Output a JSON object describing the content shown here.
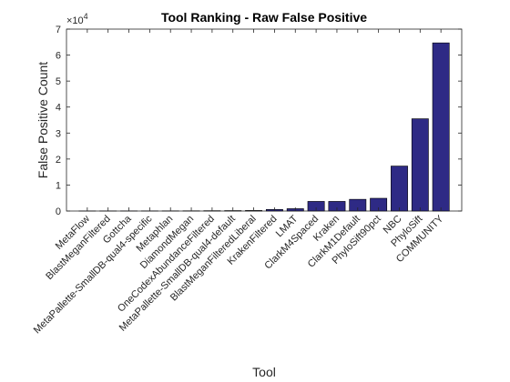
{
  "chart_data": {
    "type": "bar",
    "title": "Tool Ranking - Raw False Positive",
    "xlabel": "Tool",
    "ylabel": "False Positive Count",
    "y_exponent_base": "×10",
    "y_exponent_power": "4",
    "ylim": [
      0,
      70000
    ],
    "yticks": [
      0,
      10000,
      20000,
      30000,
      40000,
      50000,
      60000,
      70000
    ],
    "ytick_labels": [
      "0",
      "1",
      "2",
      "3",
      "4",
      "5",
      "6",
      "7"
    ],
    "categories": [
      "MetaFlow",
      "BlastMeganFiltered",
      "Gottcha",
      "MetaPallette-SmallDB-qual4-specific",
      "Metaphlan",
      "DiamondMegan",
      "OneCodexAbundanceFiltered",
      "MetaPallette-SmallDB-qual4-default",
      "BlastMeganFilteredLiberal",
      "KrakenFiltered",
      "LMAT",
      "ClarkM4Spaced",
      "Kraken",
      "ClarkM1Default",
      "PhyloSift90pct",
      "NBC",
      "PhyloSift",
      "COMMUNITY"
    ],
    "values": [
      10,
      20,
      30,
      40,
      60,
      80,
      120,
      150,
      200,
      600,
      900,
      3700,
      3700,
      4500,
      4900,
      17300,
      35500,
      64700
    ],
    "bar_color": "#2e2a85",
    "grid": false,
    "box": true
  }
}
